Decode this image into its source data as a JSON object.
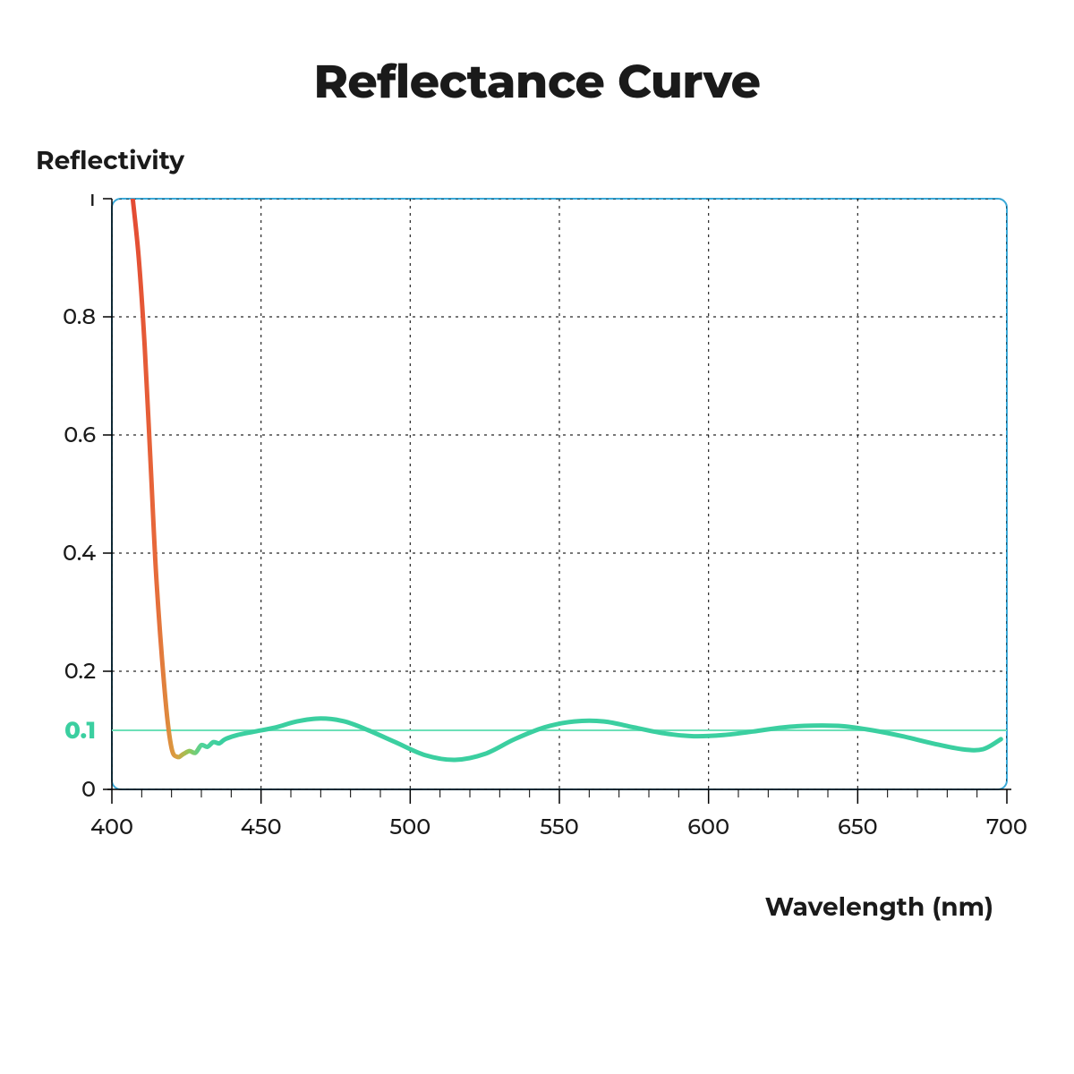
{
  "chart": {
    "type": "line",
    "title": "Reflectance Curve",
    "ylabel": "Reflectivity",
    "xlabel": "Wavelength (nm)",
    "title_fontsize": 52,
    "label_fontsize": 28,
    "tick_fontsize": 24,
    "background_color": "#ffffff",
    "plot_border_color": "#3aa9d8",
    "plot_border_width": 2,
    "plot_border_radius": 10,
    "xlim": [
      400,
      700
    ],
    "ylim": [
      0,
      1
    ],
    "yticks": [
      0,
      0.2,
      0.4,
      0.6,
      0.8,
      1
    ],
    "xticks": [
      400,
      450,
      500,
      550,
      600,
      650,
      700
    ],
    "xtick_minor_step": 10,
    "grid_color": "#000000",
    "grid_dash": "3,5",
    "grid_width": 1.2,
    "threshold": {
      "value": 0.1,
      "label": "0.1",
      "color": "#6de0b8",
      "width": 2
    },
    "curve": {
      "width": 5,
      "gradient_stops": [
        {
          "offset": 0.0,
          "color": "#e34a33"
        },
        {
          "offset": 0.025,
          "color": "#e7673a"
        },
        {
          "offset": 0.05,
          "color": "#d9a040"
        },
        {
          "offset": 0.065,
          "color": "#8fc85a"
        },
        {
          "offset": 0.08,
          "color": "#4fd39b"
        },
        {
          "offset": 0.1,
          "color": "#3bcfa0"
        },
        {
          "offset": 1.0,
          "color": "#3bcfa0"
        }
      ],
      "points": [
        {
          "x": 407,
          "y": 1.0
        },
        {
          "x": 409,
          "y": 0.9
        },
        {
          "x": 411,
          "y": 0.75
        },
        {
          "x": 413,
          "y": 0.55
        },
        {
          "x": 415,
          "y": 0.35
        },
        {
          "x": 418,
          "y": 0.15
        },
        {
          "x": 420,
          "y": 0.07
        },
        {
          "x": 422,
          "y": 0.055
        },
        {
          "x": 424,
          "y": 0.06
        },
        {
          "x": 426,
          "y": 0.065
        },
        {
          "x": 428,
          "y": 0.062
        },
        {
          "x": 430,
          "y": 0.075
        },
        {
          "x": 432,
          "y": 0.072
        },
        {
          "x": 434,
          "y": 0.08
        },
        {
          "x": 436,
          "y": 0.078
        },
        {
          "x": 438,
          "y": 0.085
        },
        {
          "x": 442,
          "y": 0.092
        },
        {
          "x": 448,
          "y": 0.098
        },
        {
          "x": 455,
          "y": 0.105
        },
        {
          "x": 462,
          "y": 0.115
        },
        {
          "x": 470,
          "y": 0.12
        },
        {
          "x": 478,
          "y": 0.115
        },
        {
          "x": 486,
          "y": 0.1
        },
        {
          "x": 495,
          "y": 0.08
        },
        {
          "x": 505,
          "y": 0.058
        },
        {
          "x": 515,
          "y": 0.05
        },
        {
          "x": 525,
          "y": 0.06
        },
        {
          "x": 535,
          "y": 0.085
        },
        {
          "x": 545,
          "y": 0.105
        },
        {
          "x": 555,
          "y": 0.115
        },
        {
          "x": 565,
          "y": 0.115
        },
        {
          "x": 575,
          "y": 0.105
        },
        {
          "x": 585,
          "y": 0.095
        },
        {
          "x": 595,
          "y": 0.09
        },
        {
          "x": 605,
          "y": 0.092
        },
        {
          "x": 615,
          "y": 0.098
        },
        {
          "x": 625,
          "y": 0.105
        },
        {
          "x": 635,
          "y": 0.108
        },
        {
          "x": 645,
          "y": 0.107
        },
        {
          "x": 655,
          "y": 0.1
        },
        {
          "x": 665,
          "y": 0.09
        },
        {
          "x": 675,
          "y": 0.078
        },
        {
          "x": 685,
          "y": 0.068
        },
        {
          "x": 692,
          "y": 0.068
        },
        {
          "x": 698,
          "y": 0.085
        }
      ]
    }
  }
}
